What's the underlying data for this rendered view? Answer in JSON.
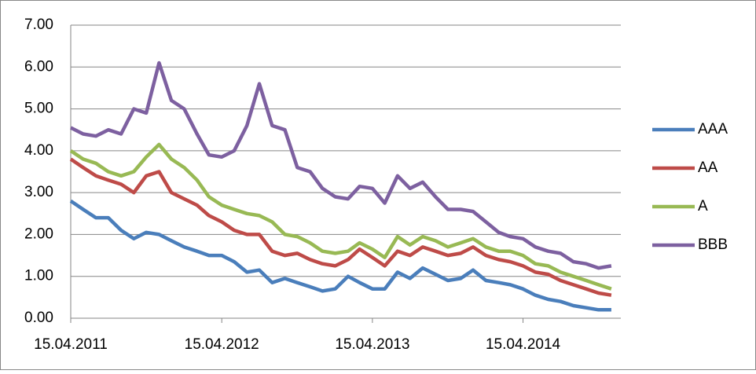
{
  "chart_data": {
    "type": "line",
    "x": [
      "15.04.2011",
      "15.05.2011",
      "15.06.2011",
      "15.07.2011",
      "15.08.2011",
      "15.09.2011",
      "15.10.2011",
      "15.11.2011",
      "15.12.2011",
      "15.01.2012",
      "15.02.2012",
      "15.03.2012",
      "15.04.2012",
      "15.05.2012",
      "15.06.2012",
      "15.07.2012",
      "15.08.2012",
      "15.09.2012",
      "15.10.2012",
      "15.11.2012",
      "15.12.2012",
      "15.01.2013",
      "15.02.2013",
      "15.03.2013",
      "15.04.2013",
      "15.05.2013",
      "15.06.2013",
      "15.07.2013",
      "15.08.2013",
      "15.09.2013",
      "15.10.2013",
      "15.11.2013",
      "15.12.2013",
      "15.01.2014",
      "15.02.2014",
      "15.03.2014",
      "15.04.2014",
      "15.05.2014",
      "15.06.2014",
      "15.07.2014",
      "15.08.2014",
      "15.09.2014",
      "15.10.2014",
      "15.11.2014"
    ],
    "series": [
      {
        "name": "AAA",
        "color": "#4a7ebb",
        "values": [
          2.8,
          2.6,
          2.4,
          2.4,
          2.1,
          1.9,
          2.05,
          2.0,
          1.85,
          1.7,
          1.6,
          1.5,
          1.5,
          1.35,
          1.1,
          1.15,
          0.85,
          0.95,
          0.85,
          0.75,
          0.65,
          0.7,
          1.0,
          0.85,
          0.7,
          0.7,
          1.1,
          0.95,
          1.2,
          1.05,
          0.9,
          0.95,
          1.15,
          0.9,
          0.85,
          0.8,
          0.7,
          0.55,
          0.45,
          0.4,
          0.3,
          0.25,
          0.2,
          0.2
        ]
      },
      {
        "name": "AA",
        "color": "#be4b48",
        "values": [
          3.8,
          3.6,
          3.4,
          3.3,
          3.2,
          3.0,
          3.4,
          3.5,
          3.0,
          2.85,
          2.7,
          2.45,
          2.3,
          2.1,
          2.0,
          2.0,
          1.6,
          1.5,
          1.55,
          1.4,
          1.3,
          1.25,
          1.4,
          1.65,
          1.45,
          1.25,
          1.6,
          1.5,
          1.7,
          1.6,
          1.5,
          1.55,
          1.7,
          1.5,
          1.4,
          1.35,
          1.25,
          1.1,
          1.05,
          0.9,
          0.8,
          0.7,
          0.6,
          0.55
        ]
      },
      {
        "name": "A",
        "color": "#98b954",
        "values": [
          4.0,
          3.8,
          3.7,
          3.5,
          3.4,
          3.5,
          3.85,
          4.15,
          3.8,
          3.6,
          3.3,
          2.9,
          2.7,
          2.6,
          2.5,
          2.45,
          2.3,
          2.0,
          1.95,
          1.8,
          1.6,
          1.55,
          1.6,
          1.8,
          1.65,
          1.45,
          1.95,
          1.75,
          1.95,
          1.85,
          1.7,
          1.8,
          1.9,
          1.7,
          1.6,
          1.6,
          1.5,
          1.3,
          1.25,
          1.1,
          1.0,
          0.9,
          0.8,
          0.7
        ]
      },
      {
        "name": "BBB",
        "color": "#7d60a0",
        "values": [
          4.55,
          4.4,
          4.35,
          4.5,
          4.4,
          5.0,
          4.9,
          6.1,
          5.2,
          5.0,
          4.4,
          3.9,
          3.85,
          4.0,
          4.6,
          5.6,
          4.6,
          4.5,
          3.6,
          3.5,
          3.1,
          2.9,
          2.85,
          3.15,
          3.1,
          2.75,
          3.4,
          3.1,
          3.25,
          2.9,
          2.6,
          2.6,
          2.55,
          2.3,
          2.05,
          1.95,
          1.9,
          1.7,
          1.6,
          1.55,
          1.35,
          1.3,
          1.2,
          1.25
        ]
      }
    ],
    "xlim": [
      "15.04.2011",
      "08.12.2014"
    ],
    "xticks": [
      "15.04.2011",
      "15.04.2012",
      "15.04.2013",
      "15.04.2014"
    ],
    "ylim": [
      0,
      7
    ],
    "yticks": [
      {
        "value": 0,
        "label": "0.00"
      },
      {
        "value": 1,
        "label": "1.00"
      },
      {
        "value": 2,
        "label": "2.00"
      },
      {
        "value": 3,
        "label": "3.00"
      },
      {
        "value": 4,
        "label": "4.00"
      },
      {
        "value": 5,
        "label": "5.00"
      },
      {
        "value": 6,
        "label": "6.00"
      },
      {
        "value": 7,
        "label": "7.00"
      }
    ],
    "grid": true,
    "legend": "right"
  }
}
